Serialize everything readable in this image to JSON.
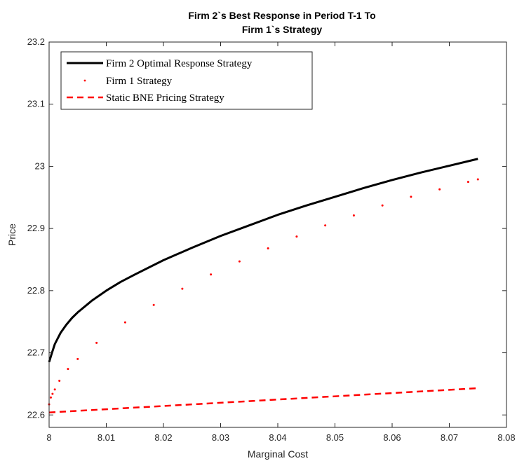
{
  "chart_data": {
    "type": "line",
    "title_lines": [
      "Firm 2`s Best Response in Period T-1 To",
      "Firm 1`s Strategy"
    ],
    "xlabel": "Marginal Cost",
    "ylabel": "Price",
    "xlim": [
      8,
      8.08
    ],
    "ylim": [
      22.58,
      23.2
    ],
    "x_ticks": [
      8,
      8.01,
      8.02,
      8.03,
      8.04,
      8.05,
      8.06,
      8.07,
      8.08
    ],
    "x_tick_labels": [
      "8",
      "8.01",
      "8.02",
      "8.03",
      "8.04",
      "8.05",
      "8.06",
      "8.07",
      "8.08"
    ],
    "y_ticks": [
      22.6,
      22.7,
      22.8,
      22.9,
      23,
      23.1,
      23.2
    ],
    "y_tick_labels": [
      "22.6",
      "22.7",
      "22.8",
      "22.9",
      "23",
      "23.1",
      "23.2"
    ],
    "grid": false,
    "legend_position": "top-left",
    "series": [
      {
        "name": "Firm 2 Optimal Response Strategy",
        "style": "solid",
        "color": "#000000",
        "x": [
          8.0,
          8.0005,
          8.001,
          8.002,
          8.003,
          8.004,
          8.005,
          8.0075,
          8.01,
          8.0125,
          8.015,
          8.02,
          8.025,
          8.03,
          8.035,
          8.04,
          8.045,
          8.05,
          8.055,
          8.06,
          8.065,
          8.07,
          8.075
        ],
        "y": [
          22.685,
          22.7,
          22.714,
          22.732,
          22.745,
          22.756,
          22.765,
          22.784,
          22.8,
          22.814,
          22.826,
          22.849,
          22.869,
          22.888,
          22.905,
          22.922,
          22.937,
          22.951,
          22.965,
          22.978,
          22.99,
          23.001,
          23.012
        ]
      },
      {
        "name": "Firm 1 Strategy",
        "style": "dots",
        "color": "#ff0000",
        "x": [
          8.0,
          8.0003,
          8.0006,
          8.001,
          8.0018,
          8.0033,
          8.005,
          8.0083,
          8.0133,
          8.0183,
          8.0233,
          8.0283,
          8.0333,
          8.0383,
          8.0433,
          8.0483,
          8.0533,
          8.0583,
          8.0633,
          8.0683,
          8.0733,
          8.075
        ],
        "y": [
          22.617,
          22.628,
          22.634,
          22.641,
          22.655,
          22.674,
          22.69,
          22.716,
          22.749,
          22.777,
          22.803,
          22.826,
          22.847,
          22.868,
          22.887,
          22.905,
          22.921,
          22.937,
          22.951,
          22.963,
          22.975,
          22.979
        ]
      },
      {
        "name": "Static BNE Pricing Strategy",
        "style": "dashed",
        "color": "#ff0000",
        "x": [
          8.0,
          8.075
        ],
        "y": [
          22.604,
          22.643
        ]
      }
    ]
  }
}
